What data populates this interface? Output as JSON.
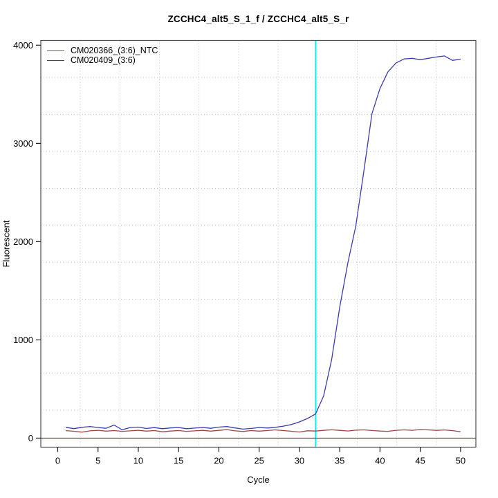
{
  "chart_data": {
    "type": "line",
    "title": "ZCCHC4_alt5_S_1_f / ZCCHC4_alt5_S_r",
    "xlabel": "Cycle",
    "ylabel": "Fluorescent",
    "xlim": [
      -2.1,
      51.9
    ],
    "ylim": [
      -92,
      4048
    ],
    "x_ticks": [
      0,
      5,
      10,
      15,
      20,
      25,
      30,
      35,
      40,
      45,
      50
    ],
    "y_ticks": [
      0,
      1000,
      2000,
      3000,
      4000
    ],
    "grid": {
      "on": true,
      "style": "dotted",
      "color": "#bfbfbf",
      "divisions": 11
    },
    "legend_position": "top-left",
    "series": [
      {
        "name": "CM020366_(3:6)_NTC",
        "color": "#a04343",
        "x": [
          1,
          2,
          3,
          4,
          5,
          6,
          7,
          8,
          9,
          10,
          11,
          12,
          13,
          14,
          15,
          16,
          17,
          18,
          19,
          20,
          21,
          22,
          23,
          24,
          25,
          26,
          27,
          28,
          29,
          30,
          31,
          32,
          33,
          34,
          35,
          36,
          37,
          38,
          39,
          40,
          41,
          42,
          43,
          44,
          45,
          46,
          47,
          48,
          49,
          50
        ],
        "values": [
          76,
          70,
          61,
          74,
          80,
          71,
          77,
          69,
          74,
          80,
          71,
          77,
          64,
          72,
          77,
          69,
          74,
          79,
          71,
          79,
          87,
          74,
          68,
          77,
          71,
          77,
          84,
          77,
          70,
          62,
          75,
          72,
          79,
          85,
          79,
          73,
          81,
          84,
          78,
          72,
          69,
          80,
          84,
          80,
          87,
          84,
          79,
          83,
          76,
          66
        ]
      },
      {
        "name": "CM020409_(3:6)",
        "color": "#3b3baf",
        "x": [
          1,
          2,
          3,
          4,
          5,
          6,
          7,
          8,
          9,
          10,
          11,
          12,
          13,
          14,
          15,
          16,
          17,
          18,
          19,
          20,
          21,
          22,
          23,
          24,
          25,
          26,
          27,
          28,
          29,
          30,
          31,
          32,
          33,
          34,
          35,
          36,
          37,
          38,
          39,
          40,
          41,
          42,
          43,
          44,
          45,
          46,
          47,
          48,
          49,
          50
        ],
        "values": [
          110,
          97,
          110,
          118,
          108,
          100,
          133,
          85,
          108,
          112,
          98,
          107,
          96,
          104,
          108,
          96,
          102,
          108,
          100,
          112,
          118,
          104,
          92,
          99,
          108,
          103,
          110,
          122,
          138,
          165,
          200,
          245,
          430,
          800,
          1330,
          1780,
          2160,
          2720,
          3300,
          3560,
          3730,
          3820,
          3860,
          3866,
          3852,
          3866,
          3880,
          3890,
          3845,
          3858
        ]
      }
    ],
    "reference_lines": [
      {
        "orientation": "vertical",
        "x": 32,
        "color": "#00ffff",
        "role": "threshold-cycle-line"
      },
      {
        "orientation": "horizontal",
        "y": 0,
        "color": "#8b2525",
        "role": "zero-baseline-line"
      }
    ],
    "box_color": "#4a4a4a",
    "tick_color": "#1a1a1a"
  }
}
